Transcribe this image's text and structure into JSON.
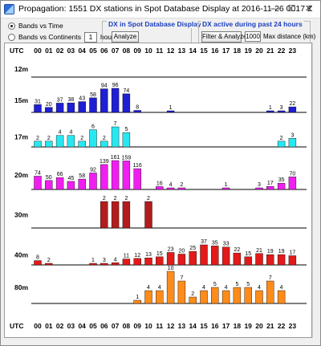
{
  "window": {
    "title": "Propagation: 1551 DX stations in Spot Database Display at 2016-11-26 0017 Z",
    "min_glyph": "—",
    "max_glyph": "☐",
    "close_glyph": "✕"
  },
  "controls": {
    "radio_time_label": "Bands vs Time",
    "radio_continents_label": "Bands vs Continents",
    "hours_value": "1",
    "hours_label": "hours",
    "group_db_title": "DX in Spot Database Display",
    "analyze_label": "Analyze",
    "group_24h_title": "DX active during past 24 hours",
    "filter_analyze_label": "Filter & Analyze",
    "max_distance_value": "1000",
    "max_distance_label": "Max distance (km)"
  },
  "chart_data": {
    "type": "bar",
    "axis_label": "UTC",
    "categories": [
      "00",
      "01",
      "02",
      "03",
      "04",
      "05",
      "06",
      "07",
      "08",
      "09",
      "10",
      "11",
      "12",
      "13",
      "14",
      "15",
      "16",
      "17",
      "18",
      "19",
      "20",
      "21",
      "22",
      "23"
    ],
    "series": [
      {
        "name": "12m",
        "color": "#1f1fd4",
        "values": [
          null,
          null,
          null,
          null,
          null,
          null,
          null,
          null,
          null,
          null,
          null,
          null,
          null,
          null,
          null,
          null,
          null,
          null,
          null,
          null,
          null,
          null,
          null,
          null
        ]
      },
      {
        "name": "15m",
        "color": "#1f1fd4",
        "values": [
          31,
          20,
          37,
          38,
          43,
          58,
          94,
          96,
          74,
          8,
          null,
          null,
          1,
          null,
          null,
          null,
          null,
          null,
          null,
          null,
          null,
          1,
          3,
          22
        ]
      },
      {
        "name": "17m",
        "color": "#27e8f0",
        "values": [
          2,
          2,
          4,
          4,
          2,
          6,
          2,
          7,
          5,
          null,
          null,
          null,
          null,
          null,
          null,
          null,
          null,
          null,
          null,
          null,
          null,
          null,
          2,
          3
        ]
      },
      {
        "name": "20m",
        "color": "#f01ff0",
        "values": [
          74,
          50,
          66,
          45,
          58,
          92,
          139,
          161,
          159,
          116,
          null,
          16,
          4,
          2,
          null,
          null,
          null,
          1,
          null,
          null,
          3,
          17,
          35,
          70
        ]
      },
      {
        "name": "30m",
        "color": "#b31c1c",
        "values": [
          null,
          null,
          null,
          null,
          null,
          null,
          2,
          2,
          2,
          null,
          2,
          null,
          null,
          null,
          null,
          null,
          null,
          null,
          null,
          null,
          null,
          null,
          null,
          null
        ]
      },
      {
        "name": "40m",
        "color": "#e31a1a",
        "values": [
          8,
          2,
          null,
          null,
          null,
          1,
          3,
          4,
          11,
          12,
          13,
          15,
          23,
          20,
          25,
          37,
          35,
          33,
          22,
          15,
          21,
          19,
          19,
          17
        ]
      },
      {
        "name": "80m",
        "color": "#ff8c1a",
        "values": [
          null,
          null,
          null,
          null,
          null,
          null,
          null,
          null,
          null,
          1,
          4,
          4,
          10,
          7,
          2,
          4,
          5,
          4,
          5,
          5,
          4,
          7,
          4,
          null
        ]
      }
    ]
  }
}
